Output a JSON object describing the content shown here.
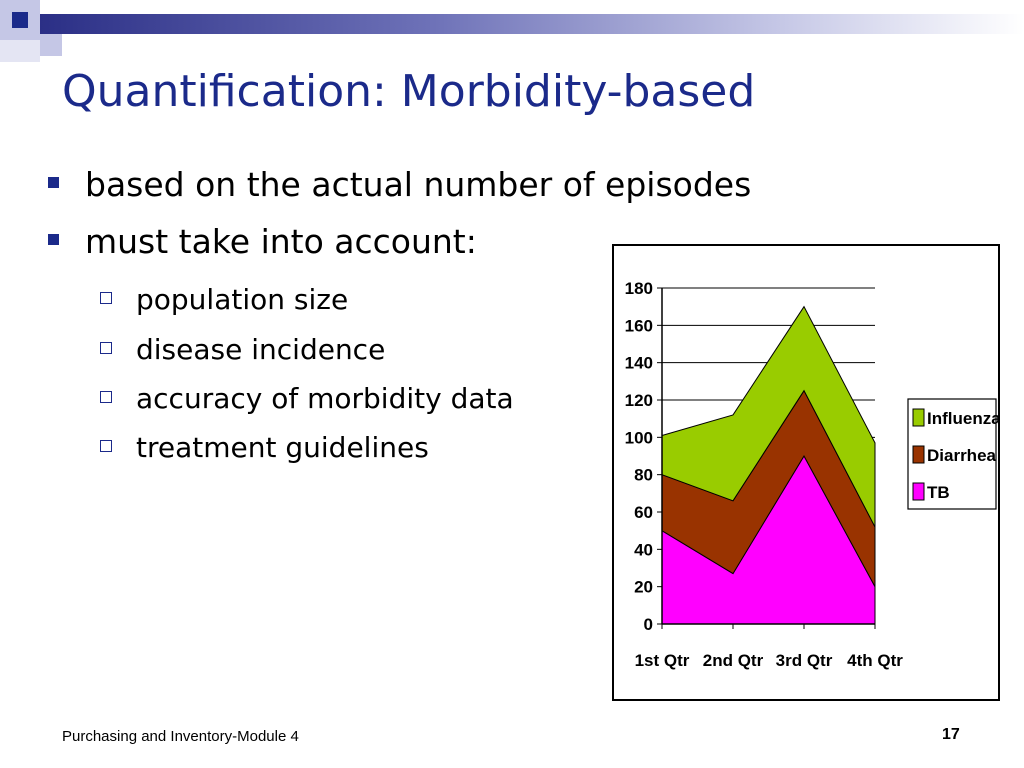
{
  "slide": {
    "title": "Quantification: Morbidity-based",
    "bullets": [
      "based on the actual number of episodes",
      "must take into account:"
    ],
    "sub_bullets": [
      "population size",
      "disease incidence",
      "accuracy of morbidity data",
      "treatment guidelines"
    ],
    "footer": "Purchasing and Inventory-Module 4",
    "page_number": "17",
    "colors": {
      "title": "#1b2a8a",
      "bullet": "#1b2a8a"
    }
  },
  "chart_data": {
    "type": "area",
    "stacked": true,
    "categories": [
      "1st Qtr",
      "2nd Qtr",
      "3rd Qtr",
      "4th Qtr"
    ],
    "series": [
      {
        "name": "TB",
        "values": [
          50,
          27,
          90,
          20
        ],
        "color": "#ff00ff"
      },
      {
        "name": "Diarrhea",
        "values": [
          30,
          39,
          35,
          32
        ],
        "color": "#993300"
      },
      {
        "name": "Influenza",
        "values": [
          21,
          46,
          45,
          45
        ],
        "color": "#99cc00"
      }
    ],
    "ylim": [
      0,
      180
    ],
    "yticks": [
      "0",
      "20",
      "40",
      "60",
      "80",
      "100",
      "120",
      "140",
      "160",
      "180"
    ],
    "grid": true,
    "legend_position": "right",
    "legend_order": [
      "Influenza",
      "Diarrhea",
      "TB"
    ],
    "title": "",
    "xlabel": "",
    "ylabel": ""
  }
}
